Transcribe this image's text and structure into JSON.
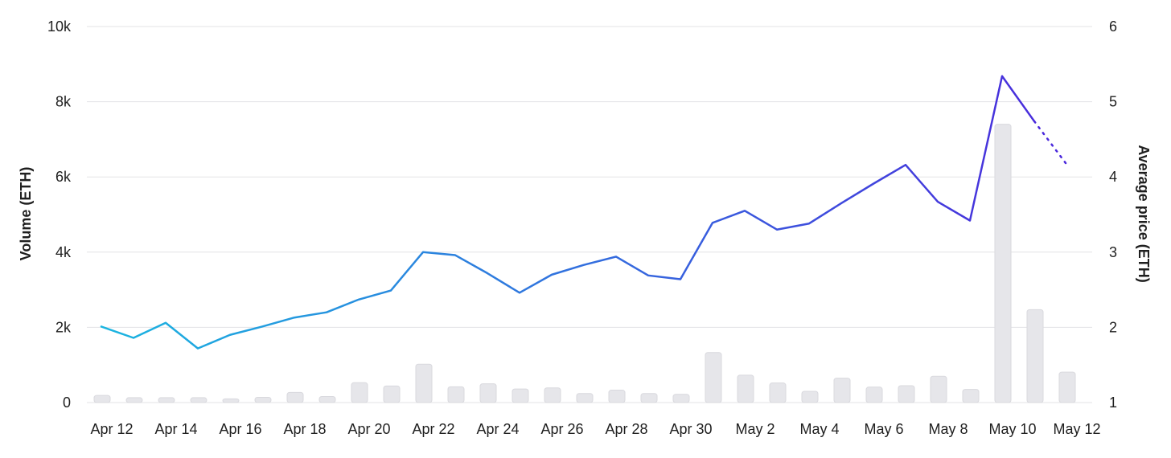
{
  "chart_data": {
    "type": "bar+line",
    "title": "",
    "left_axis": {
      "label": "Volume (ETH)",
      "range": [
        0,
        10000
      ],
      "ticks": [
        0,
        2000,
        4000,
        6000,
        8000,
        10000
      ],
      "tick_labels": [
        "0",
        "2k",
        "4k",
        "6k",
        "8k",
        "10k"
      ]
    },
    "right_axis": {
      "label": "Average price (ETH)",
      "range": [
        1,
        6
      ],
      "ticks": [
        1,
        2,
        3,
        4,
        5,
        6
      ],
      "tick_labels": [
        "1",
        "2",
        "3",
        "4",
        "5",
        "6"
      ]
    },
    "x_tick_labels": [
      "Apr 12",
      "Apr 14",
      "Apr 16",
      "Apr 18",
      "Apr 20",
      "Apr 22",
      "Apr 24",
      "Apr 26",
      "Apr 28",
      "Apr 30",
      "May 2",
      "May 4",
      "May 6",
      "May 8",
      "May 10",
      "May 12"
    ],
    "dates": [
      "Apr 12",
      "Apr 13",
      "Apr 14",
      "Apr 15",
      "Apr 16",
      "Apr 17",
      "Apr 18",
      "Apr 19",
      "Apr 20",
      "Apr 21",
      "Apr 22",
      "Apr 23",
      "Apr 24",
      "Apr 25",
      "Apr 26",
      "Apr 27",
      "Apr 28",
      "Apr 29",
      "Apr 30",
      "May 1",
      "May 2",
      "May 3",
      "May 4",
      "May 5",
      "May 6",
      "May 7",
      "May 8",
      "May 9",
      "May 10",
      "May 11",
      "May 12"
    ],
    "volume": [
      190,
      130,
      130,
      130,
      100,
      140,
      270,
      160,
      530,
      440,
      1020,
      420,
      500,
      360,
      390,
      240,
      330,
      240,
      220,
      1330,
      730,
      520,
      300,
      650,
      410,
      450,
      700,
      350,
      7400,
      2470,
      810
    ],
    "price_dates": [
      "Apr 11.8",
      "Apr 12.8",
      "Apr 13.8",
      "Apr 14.8",
      "Apr 15.8",
      "Apr 16.8",
      "Apr 17.8",
      "Apr 18.8",
      "Apr 19.8",
      "Apr 20.8",
      "Apr 21.8",
      "Apr 22.8",
      "Apr 23.8",
      "Apr 24.8",
      "Apr 25.8",
      "Apr 26.8",
      "Apr 27.8",
      "Apr 28.8",
      "Apr 29.8",
      "Apr 30.8",
      "May 1.8",
      "May 2.8",
      "May 3.8",
      "May 4.8",
      "May 5.8",
      "May 6.8",
      "May 7.8",
      "May 8.8",
      "May 9.8",
      "May 10.8",
      "May 11.8"
    ],
    "avg_price": [
      2.01,
      1.86,
      2.06,
      1.72,
      1.9,
      2.01,
      2.13,
      2.2,
      2.37,
      2.49,
      3.0,
      2.96,
      2.72,
      2.46,
      2.7,
      2.83,
      2.94,
      2.69,
      2.64,
      3.39,
      3.55,
      3.3,
      3.38,
      3.65,
      3.91,
      4.16,
      3.67,
      3.42,
      5.34,
      4.74,
      4.17
    ],
    "projected_from_index": 29,
    "colors": {
      "bar": "#e6e6ea",
      "line_start": "#1bb5e0",
      "line_end": "#4a28dc",
      "grid": "#e3e3e6"
    }
  }
}
